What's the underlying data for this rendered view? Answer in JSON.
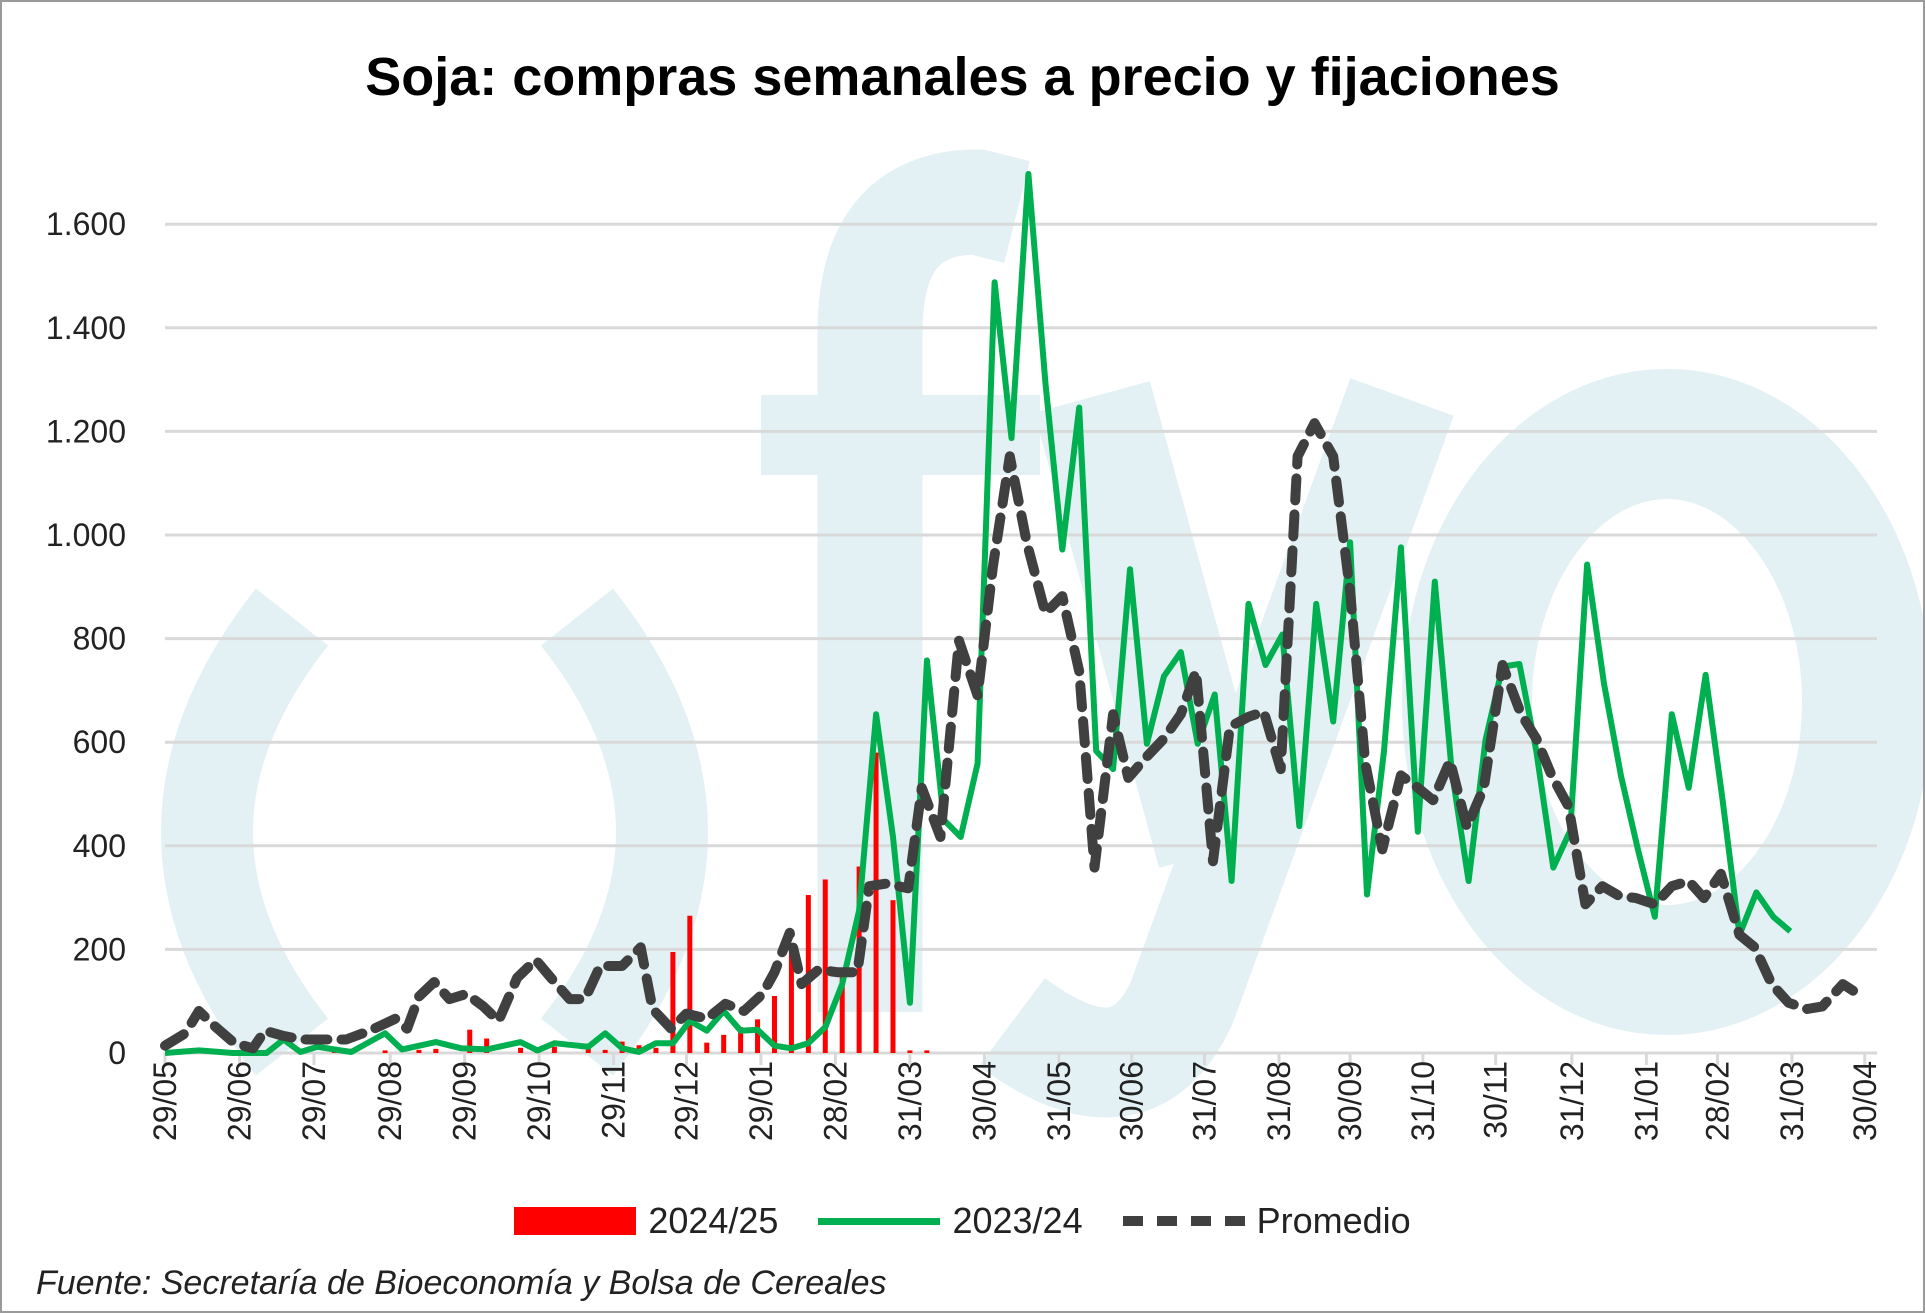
{
  "chart_data": {
    "type": "bar+line",
    "title": "Soja: compras semanales a precio y fijaciones",
    "xlabel": "",
    "ylabel": "",
    "ylim": [
      0,
      1700
    ],
    "xlim_weeks": [
      0,
      100.5
    ],
    "yticks": [
      {
        "value": 0,
        "label": "0"
      },
      {
        "value": 200,
        "label": "200"
      },
      {
        "value": 400,
        "label": "400"
      },
      {
        "value": 600,
        "label": "600"
      },
      {
        "value": 800,
        "label": "800"
      },
      {
        "value": 1000,
        "label": "1.000"
      },
      {
        "value": 1200,
        "label": "1.200"
      },
      {
        "value": 1400,
        "label": "1.400"
      },
      {
        "value": 1600,
        "label": "1.600"
      }
    ],
    "xticks": [
      {
        "week": 0,
        "label": "29/05"
      },
      {
        "week": 4.4,
        "label": "29/06"
      },
      {
        "week": 8.8,
        "label": "29/07"
      },
      {
        "week": 13.3,
        "label": "29/08"
      },
      {
        "week": 17.7,
        "label": "29/09"
      },
      {
        "week": 22.1,
        "label": "29/10"
      },
      {
        "week": 26.5,
        "label": "29/11"
      },
      {
        "week": 30.8,
        "label": "29/12"
      },
      {
        "week": 35.2,
        "label": "29/01"
      },
      {
        "week": 39.6,
        "label": "28/02"
      },
      {
        "week": 44,
        "label": "31/03"
      },
      {
        "week": 48.4,
        "label": "30/04"
      },
      {
        "week": 52.8,
        "label": "31/05"
      },
      {
        "week": 57.1,
        "label": "30/06"
      },
      {
        "week": 61.4,
        "label": "31/07"
      },
      {
        "week": 65.8,
        "label": "31/08"
      },
      {
        "week": 70,
        "label": "30/09"
      },
      {
        "week": 74.3,
        "label": "31/10"
      },
      {
        "week": 78.6,
        "label": "30/11"
      },
      {
        "week": 83.1,
        "label": "31/12"
      },
      {
        "week": 87.5,
        "label": "31/01"
      },
      {
        "week": 91.7,
        "label": "28/02"
      },
      {
        "week": 96.1,
        "label": "31/03"
      },
      {
        "week": 100.4,
        "label": "30/04"
      }
    ],
    "grid": true,
    "legend_position": "bottom",
    "series": [
      {
        "name": "2024/25",
        "kind": "bar",
        "color": "#ff0000",
        "points": [
          [
            2,
            3
          ],
          [
            4,
            2
          ],
          [
            6,
            3
          ],
          [
            8,
            4
          ],
          [
            10,
            3
          ],
          [
            11,
            8
          ],
          [
            13,
            5
          ],
          [
            15,
            6
          ],
          [
            16,
            8
          ],
          [
            18,
            45
          ],
          [
            19,
            28
          ],
          [
            21,
            10
          ],
          [
            22,
            8
          ],
          [
            23,
            12
          ],
          [
            25,
            18
          ],
          [
            26,
            6
          ],
          [
            27,
            22
          ],
          [
            28,
            15
          ],
          [
            29,
            10
          ],
          [
            30,
            195
          ],
          [
            31,
            265
          ],
          [
            32,
            20
          ],
          [
            33,
            35
          ],
          [
            34,
            50
          ],
          [
            35,
            65
          ],
          [
            36,
            110
          ],
          [
            37,
            200
          ],
          [
            38,
            305
          ],
          [
            39,
            335
          ],
          [
            40,
            150
          ],
          [
            41,
            360
          ],
          [
            42,
            580
          ],
          [
            43,
            295
          ],
          [
            44,
            5
          ],
          [
            45,
            5
          ]
        ]
      },
      {
        "name": "2023/24",
        "kind": "line",
        "color": "#00b050",
        "points": [
          [
            0,
            0
          ],
          [
            2,
            5
          ],
          [
            4,
            0
          ],
          [
            6,
            0
          ],
          [
            7,
            26
          ],
          [
            8,
            2
          ],
          [
            9,
            12
          ],
          [
            11,
            2
          ],
          [
            13,
            38
          ],
          [
            14,
            7
          ],
          [
            16,
            21
          ],
          [
            17.5,
            9
          ],
          [
            19,
            7
          ],
          [
            21,
            21
          ],
          [
            22,
            5
          ],
          [
            23,
            19
          ],
          [
            25,
            12
          ],
          [
            26,
            38
          ],
          [
            27,
            9
          ],
          [
            28,
            2
          ],
          [
            29,
            19
          ],
          [
            30,
            19
          ],
          [
            31,
            62
          ],
          [
            32,
            43
          ],
          [
            33,
            81
          ],
          [
            34,
            43
          ],
          [
            35,
            45
          ],
          [
            36,
            14
          ],
          [
            37,
            9
          ],
          [
            38,
            19
          ],
          [
            39,
            50
          ],
          [
            40,
            133
          ],
          [
            41,
            275
          ],
          [
            42,
            654
          ],
          [
            43,
            417
          ],
          [
            44,
            97
          ],
          [
            45,
            758
          ],
          [
            46,
            450
          ],
          [
            47,
            417
          ],
          [
            48,
            559
          ],
          [
            49,
            1488
          ],
          [
            50,
            1187
          ],
          [
            51,
            1697
          ],
          [
            52,
            1294
          ],
          [
            53,
            972
          ],
          [
            54,
            1246
          ],
          [
            55,
            583
          ],
          [
            56,
            548
          ],
          [
            57,
            934
          ],
          [
            58,
            597
          ],
          [
            59,
            727
          ],
          [
            60,
            774
          ],
          [
            61,
            597
          ],
          [
            62,
            692
          ],
          [
            63,
            332
          ],
          [
            64,
            867
          ],
          [
            65,
            749
          ],
          [
            66,
            808
          ],
          [
            67,
            438
          ],
          [
            68,
            867
          ],
          [
            69,
            640
          ],
          [
            70,
            986
          ],
          [
            71,
            306
          ],
          [
            72,
            583
          ],
          [
            73,
            976
          ],
          [
            74,
            427
          ],
          [
            75,
            910
          ],
          [
            76,
            545
          ],
          [
            77,
            332
          ],
          [
            78,
            604
          ],
          [
            79,
            746
          ],
          [
            80,
            751
          ],
          [
            81,
            583
          ],
          [
            82,
            358
          ],
          [
            83,
            429
          ],
          [
            84,
            943
          ],
          [
            85,
            713
          ],
          [
            86,
            535
          ],
          [
            87,
            393
          ],
          [
            88,
            263
          ],
          [
            89,
            654
          ],
          [
            90,
            512
          ],
          [
            91,
            730
          ],
          [
            92,
            488
          ],
          [
            93,
            228
          ],
          [
            94,
            310
          ],
          [
            95,
            263
          ],
          [
            96,
            235
          ]
        ]
      },
      {
        "name": "Promedio",
        "kind": "dashed-line",
        "color": "#404040",
        "points": [
          [
            0,
            14
          ],
          [
            1.2,
            38
          ],
          [
            2,
            81
          ],
          [
            3,
            50
          ],
          [
            4.1,
            19
          ],
          [
            5.2,
            9
          ],
          [
            5.9,
            43
          ],
          [
            7,
            33
          ],
          [
            8.1,
            26
          ],
          [
            9.4,
            26
          ],
          [
            10.7,
            26
          ],
          [
            12.1,
            43
          ],
          [
            13.6,
            66
          ],
          [
            14.3,
            47
          ],
          [
            15,
            109
          ],
          [
            15.9,
            137
          ],
          [
            16.8,
            104
          ],
          [
            17.8,
            114
          ],
          [
            18.8,
            90
          ],
          [
            19.7,
            62
          ],
          [
            20.8,
            145
          ],
          [
            21.9,
            180
          ],
          [
            22.8,
            145
          ],
          [
            23.9,
            104
          ],
          [
            24.8,
            104
          ],
          [
            25.7,
            168
          ],
          [
            27,
            168
          ],
          [
            28.1,
            204
          ],
          [
            28.8,
            85
          ],
          [
            29.9,
            47
          ],
          [
            30.8,
            76
          ],
          [
            32,
            66
          ],
          [
            33.1,
            95
          ],
          [
            34.2,
            81
          ],
          [
            35.3,
            114
          ],
          [
            36,
            156
          ],
          [
            36.9,
            232
          ],
          [
            37.6,
            133
          ],
          [
            38.6,
            161
          ],
          [
            39.7,
            156
          ],
          [
            40.9,
            156
          ],
          [
            41.6,
            322
          ],
          [
            42.6,
            327
          ],
          [
            43.9,
            318
          ],
          [
            44.7,
            512
          ],
          [
            45.8,
            417
          ],
          [
            46.9,
            796
          ],
          [
            48,
            690
          ],
          [
            48.9,
            939
          ],
          [
            49.9,
            1152
          ],
          [
            50.9,
            986
          ],
          [
            52,
            849
          ],
          [
            53,
            882
          ],
          [
            54,
            737
          ],
          [
            54.9,
            358
          ],
          [
            56,
            654
          ],
          [
            56.9,
            531
          ],
          [
            57.9,
            569
          ],
          [
            59,
            607
          ],
          [
            60,
            654
          ],
          [
            60.9,
            737
          ],
          [
            61.9,
            370
          ],
          [
            62.9,
            630
          ],
          [
            64,
            649
          ],
          [
            64.9,
            659
          ],
          [
            65.9,
            548
          ],
          [
            66.9,
            1152
          ],
          [
            67.9,
            1216
          ],
          [
            69,
            1152
          ],
          [
            70,
            891
          ],
          [
            70.9,
            559
          ],
          [
            71.9,
            393
          ],
          [
            73,
            536
          ],
          [
            74,
            512
          ],
          [
            74.9,
            488
          ],
          [
            75.9,
            564
          ],
          [
            76.9,
            436
          ],
          [
            77.9,
            512
          ],
          [
            79,
            749
          ],
          [
            80.1,
            654
          ],
          [
            81,
            607
          ],
          [
            81.9,
            536
          ],
          [
            82.9,
            476
          ],
          [
            83.9,
            287
          ],
          [
            84.9,
            322
          ],
          [
            85.9,
            303
          ],
          [
            86.9,
            299
          ],
          [
            88,
            287
          ],
          [
            89,
            322
          ],
          [
            90,
            332
          ],
          [
            90.9,
            299
          ],
          [
            91.9,
            346
          ],
          [
            93,
            228
          ],
          [
            93.9,
            204
          ],
          [
            94.9,
            133
          ],
          [
            95.9,
            97
          ],
          [
            97,
            85
          ],
          [
            97.9,
            90
          ],
          [
            99.1,
            133
          ],
          [
            100,
            114
          ]
        ]
      }
    ]
  },
  "watermark": "fyo",
  "source": "Fuente: Secretaría de Bioeconomía y Bolsa de Cereales"
}
